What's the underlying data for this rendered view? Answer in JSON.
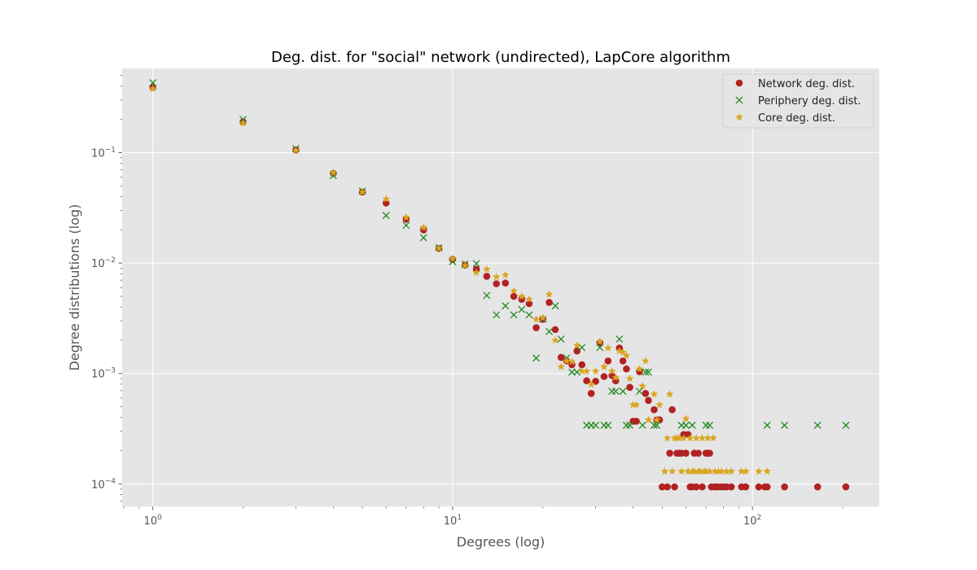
{
  "chart_data": {
    "type": "scatter",
    "title": "Deg. dist. for \"social\" network (undirected), LapCore algorithm",
    "xlabel": "Degrees (log)",
    "ylabel": "Degree distributions (log)",
    "x_scale": "log",
    "y_scale": "log",
    "xlim": [
      0.79,
      265
    ],
    "ylim": [
      6.25e-05,
      0.58
    ],
    "x_ticks": [
      {
        "value": 1,
        "base": "10",
        "exp": "0"
      },
      {
        "value": 10,
        "base": "10",
        "exp": "1"
      },
      {
        "value": 100,
        "base": "10",
        "exp": "2"
      }
    ],
    "y_ticks": [
      {
        "value": 0.1,
        "base": "10",
        "exp": "−1"
      },
      {
        "value": 0.01,
        "base": "10",
        "exp": "−2"
      },
      {
        "value": 0.001,
        "base": "10",
        "exp": "−3"
      },
      {
        "value": 0.0001,
        "base": "10",
        "exp": "−4"
      }
    ],
    "grid": true,
    "legend_position": "top-right",
    "series": [
      {
        "name": "Network deg. dist.",
        "marker": "circle",
        "color": "#b22222",
        "points": [
          [
            1,
            0.39
          ],
          [
            2,
            0.19
          ],
          [
            3,
            0.106
          ],
          [
            4,
            0.065
          ],
          [
            5,
            0.044
          ],
          [
            6,
            0.035
          ],
          [
            7,
            0.025
          ],
          [
            8,
            0.02
          ],
          [
            9,
            0.0136
          ],
          [
            10,
            0.0108
          ],
          [
            11,
            0.0096
          ],
          [
            12,
            0.0088
          ],
          [
            13,
            0.0076
          ],
          [
            14,
            0.0065
          ],
          [
            15,
            0.0066
          ],
          [
            16,
            0.005
          ],
          [
            17,
            0.0047
          ],
          [
            18,
            0.0043
          ],
          [
            19,
            0.0026
          ],
          [
            20,
            0.0031
          ],
          [
            21,
            0.0044
          ],
          [
            22,
            0.0025
          ],
          [
            23,
            0.0014
          ],
          [
            24,
            0.0013
          ],
          [
            25,
            0.0012
          ],
          [
            26,
            0.0016
          ],
          [
            27,
            0.0012
          ],
          [
            28,
            0.00086
          ],
          [
            29,
            0.00066
          ],
          [
            30,
            0.00085
          ],
          [
            31,
            0.0019
          ],
          [
            32,
            0.00094
          ],
          [
            33,
            0.0013
          ],
          [
            34,
            0.00096
          ],
          [
            35,
            0.00086
          ],
          [
            36,
            0.0017
          ],
          [
            37,
            0.0013
          ],
          [
            38,
            0.0011
          ],
          [
            39,
            0.00075
          ],
          [
            40,
            0.00037
          ],
          [
            41,
            0.00037
          ],
          [
            42,
            0.00104
          ],
          [
            44,
            0.00066
          ],
          [
            45,
            0.00057
          ],
          [
            47,
            0.00047
          ],
          [
            48,
            0.00038
          ],
          [
            49,
            0.00038
          ],
          [
            50,
            9.4e-05
          ],
          [
            52,
            9.4e-05
          ],
          [
            53,
            0.00019
          ],
          [
            54,
            0.00047
          ],
          [
            55,
            9.4e-05
          ],
          [
            56,
            0.00019
          ],
          [
            57,
            0.00019
          ],
          [
            58,
            0.00019
          ],
          [
            59,
            0.00028
          ],
          [
            60,
            0.00019
          ],
          [
            61,
            0.00028
          ],
          [
            62,
            9.4e-05
          ],
          [
            63,
            9.4e-05
          ],
          [
            64,
            0.00019
          ],
          [
            65,
            9.4e-05
          ],
          [
            66,
            0.00019
          ],
          [
            68,
            9.4e-05
          ],
          [
            70,
            0.00019
          ],
          [
            71,
            0.00019
          ],
          [
            72,
            0.00019
          ],
          [
            73,
            9.4e-05
          ],
          [
            75,
            9.4e-05
          ],
          [
            76,
            9.4e-05
          ],
          [
            78,
            9.4e-05
          ],
          [
            80,
            9.4e-05
          ],
          [
            82,
            9.4e-05
          ],
          [
            85,
            9.4e-05
          ],
          [
            92,
            9.4e-05
          ],
          [
            95,
            9.4e-05
          ],
          [
            105,
            9.4e-05
          ],
          [
            110,
            9.4e-05
          ],
          [
            112,
            9.4e-05
          ],
          [
            128,
            9.4e-05
          ],
          [
            165,
            9.4e-05
          ],
          [
            205,
            9.4e-05
          ]
        ]
      },
      {
        "name": "Periphery deg. dist.",
        "marker": "x",
        "color": "#228b22",
        "points": [
          [
            1,
            0.43
          ],
          [
            2,
            0.2
          ],
          [
            3,
            0.109
          ],
          [
            4,
            0.062
          ],
          [
            5,
            0.045
          ],
          [
            6,
            0.027
          ],
          [
            7,
            0.022
          ],
          [
            8,
            0.017
          ],
          [
            9,
            0.0138
          ],
          [
            10,
            0.0103
          ],
          [
            11,
            0.0098
          ],
          [
            12,
            0.0099
          ],
          [
            13,
            0.0051
          ],
          [
            14,
            0.0034
          ],
          [
            15,
            0.0041
          ],
          [
            16,
            0.0034
          ],
          [
            17,
            0.0038
          ],
          [
            18,
            0.0034
          ],
          [
            19,
            0.00138
          ],
          [
            20,
            0.0031
          ],
          [
            21,
            0.0024
          ],
          [
            22,
            0.0041
          ],
          [
            23,
            0.00205
          ],
          [
            24,
            0.00138
          ],
          [
            25,
            0.00103
          ],
          [
            26,
            0.00103
          ],
          [
            27,
            0.00172
          ],
          [
            28,
            0.00034
          ],
          [
            29,
            0.00034
          ],
          [
            30,
            0.00034
          ],
          [
            31,
            0.00172
          ],
          [
            32,
            0.00034
          ],
          [
            33,
            0.00034
          ],
          [
            34,
            0.00069
          ],
          [
            35,
            0.00069
          ],
          [
            36,
            0.00205
          ],
          [
            37,
            0.00069
          ],
          [
            38,
            0.00034
          ],
          [
            39,
            0.00034
          ],
          [
            42,
            0.00069
          ],
          [
            43,
            0.00034
          ],
          [
            44,
            0.00103
          ],
          [
            45,
            0.00103
          ],
          [
            47,
            0.00034
          ],
          [
            48,
            0.00034
          ],
          [
            58,
            0.00034
          ],
          [
            60,
            0.00034
          ],
          [
            63,
            0.00034
          ],
          [
            70,
            0.00034
          ],
          [
            72,
            0.00034
          ],
          [
            112,
            0.00034
          ],
          [
            128,
            0.00034
          ],
          [
            165,
            0.00034
          ],
          [
            205,
            0.00034
          ]
        ]
      },
      {
        "name": "Core deg. dist.",
        "marker": "star",
        "color": "#daa520",
        "points": [
          [
            1,
            0.38
          ],
          [
            2,
            0.185
          ],
          [
            3,
            0.105
          ],
          [
            4,
            0.066
          ],
          [
            5,
            0.044
          ],
          [
            6,
            0.038
          ],
          [
            7,
            0.026
          ],
          [
            8,
            0.021
          ],
          [
            9,
            0.0136
          ],
          [
            10,
            0.011
          ],
          [
            11,
            0.0095
          ],
          [
            12,
            0.0082
          ],
          [
            13,
            0.0088
          ],
          [
            14,
            0.0075
          ],
          [
            15,
            0.0078
          ],
          [
            16,
            0.0056
          ],
          [
            17,
            0.005
          ],
          [
            18,
            0.0047
          ],
          [
            19,
            0.0031
          ],
          [
            20,
            0.0032
          ],
          [
            21,
            0.0052
          ],
          [
            22,
            0.002
          ],
          [
            23,
            0.00115
          ],
          [
            24,
            0.0013
          ],
          [
            25,
            0.00128
          ],
          [
            26,
            0.0018
          ],
          [
            27,
            0.00105
          ],
          [
            28,
            0.00105
          ],
          [
            29,
            0.0008
          ],
          [
            30,
            0.00105
          ],
          [
            31,
            0.00195
          ],
          [
            32,
            0.00115
          ],
          [
            33,
            0.0017
          ],
          [
            34,
            0.00105
          ],
          [
            35,
            0.00092
          ],
          [
            36,
            0.0016
          ],
          [
            37,
            0.00156
          ],
          [
            38,
            0.00145
          ],
          [
            39,
            0.0009
          ],
          [
            40,
            0.00052
          ],
          [
            41,
            0.00052
          ],
          [
            42,
            0.0011
          ],
          [
            43,
            0.00077
          ],
          [
            44,
            0.0013
          ],
          [
            45,
            0.00038
          ],
          [
            47,
            0.00065
          ],
          [
            48,
            0.00038
          ],
          [
            49,
            0.00052
          ],
          [
            51,
            0.00013
          ],
          [
            52,
            0.00026
          ],
          [
            53,
            0.00065
          ],
          [
            54,
            0.00013
          ],
          [
            55,
            0.00026
          ],
          [
            56,
            0.00026
          ],
          [
            57,
            0.00026
          ],
          [
            58,
            0.00013
          ],
          [
            59,
            0.00026
          ],
          [
            60,
            0.00039
          ],
          [
            61,
            0.00013
          ],
          [
            62,
            0.00026
          ],
          [
            63,
            0.00013
          ],
          [
            64,
            0.00013
          ],
          [
            65,
            0.00026
          ],
          [
            66,
            0.00013
          ],
          [
            67,
            0.00013
          ],
          [
            68,
            0.00026
          ],
          [
            69,
            0.00013
          ],
          [
            70,
            0.00013
          ],
          [
            71,
            0.00026
          ],
          [
            72,
            0.00013
          ],
          [
            74,
            0.00026
          ],
          [
            75,
            0.00013
          ],
          [
            77,
            0.00013
          ],
          [
            79,
            0.00013
          ],
          [
            82,
            0.00013
          ],
          [
            85,
            0.00013
          ],
          [
            92,
            0.00013
          ],
          [
            95,
            0.00013
          ],
          [
            105,
            0.00013
          ],
          [
            112,
            0.00013
          ]
        ]
      }
    ]
  }
}
